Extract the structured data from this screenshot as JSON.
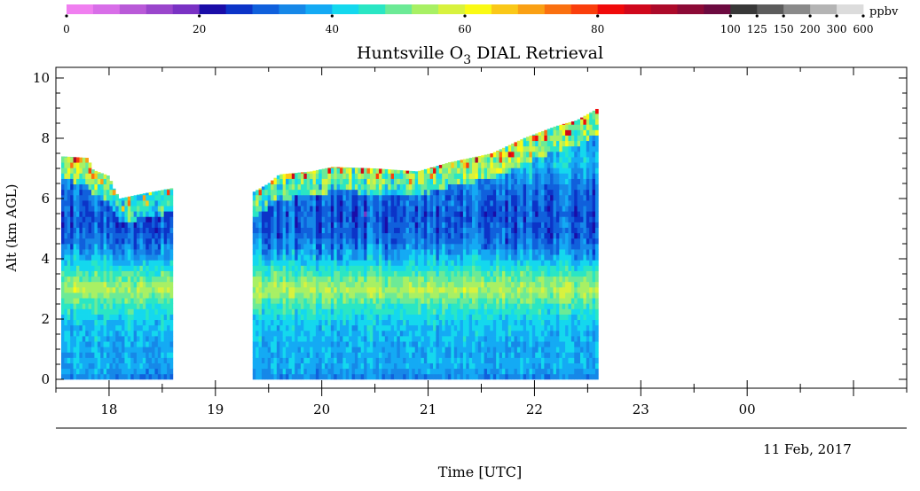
{
  "chart_data": {
    "type": "heatmap",
    "title": "Huntsville O",
    "title_subscript": "3",
    "title_suffix": " DIAL Retrieval",
    "xlabel": "Time [UTC]",
    "ylabel": "Alt (km AGL)",
    "date_label": "11 Feb, 2017",
    "ylim": [
      0,
      10
    ],
    "y_ticks": [
      "0",
      "2",
      "4",
      "6",
      "8",
      "10"
    ],
    "x_hours": [
      17.5,
      25.5
    ],
    "x_ticks": [
      {
        "hour": 18,
        "label": "18"
      },
      {
        "hour": 19,
        "label": "19"
      },
      {
        "hour": 20,
        "label": "20"
      },
      {
        "hour": 21,
        "label": "21"
      },
      {
        "hour": 22,
        "label": "22"
      },
      {
        "hour": 23,
        "label": "23"
      },
      {
        "hour": 24,
        "label": "00"
      }
    ],
    "colorbar": {
      "unit": "ppbv",
      "colors": [
        "#f07ff0",
        "#d86ee8",
        "#b95ad8",
        "#9a46cc",
        "#7a32c4",
        "#1a0da8",
        "#0c34c8",
        "#1060dc",
        "#1688e8",
        "#14aaf4",
        "#14d8ee",
        "#2ae6c4",
        "#6cea96",
        "#a8f064",
        "#d8f23e",
        "#fafa14",
        "#fac818",
        "#faa014",
        "#fa7010",
        "#fa3e0c",
        "#f00a0a",
        "#d0081c",
        "#ac0a2a",
        "#8c0a36",
        "#6c0a40",
        "#383838",
        "#5c5c5c",
        "#8a8a8a",
        "#b4b4b4",
        "#dcdcdc"
      ],
      "labels": [
        {
          "value": "0",
          "index": 0
        },
        {
          "value": "20",
          "index": 5
        },
        {
          "value": "40",
          "index": 10
        },
        {
          "value": "60",
          "index": 15
        },
        {
          "value": "80",
          "index": 20
        },
        {
          "value": "100",
          "index": 25
        },
        {
          "value": "125",
          "index": 26
        },
        {
          "value": "150",
          "index": 27
        },
        {
          "value": "200",
          "index": 28
        },
        {
          "value": "300",
          "index": 29
        },
        {
          "value": "600",
          "index": 30
        }
      ]
    },
    "segments": [
      {
        "start": 17.55,
        "end": 18.6,
        "top_km": [
          [
            17.55,
            7.4
          ],
          [
            17.8,
            7.35
          ],
          [
            17.85,
            6.95
          ],
          [
            18.0,
            6.75
          ],
          [
            18.05,
            6.3
          ],
          [
            18.1,
            6.0
          ],
          [
            18.3,
            6.15
          ],
          [
            18.6,
            6.35
          ]
        ]
      },
      {
        "start": 19.35,
        "end": 22.6,
        "top_km": [
          [
            19.35,
            6.2
          ],
          [
            19.5,
            6.5
          ],
          [
            19.6,
            6.8
          ],
          [
            19.9,
            6.9
          ],
          [
            20.1,
            7.05
          ],
          [
            20.5,
            7.0
          ],
          [
            20.9,
            6.9
          ],
          [
            21.2,
            7.2
          ],
          [
            21.6,
            7.5
          ],
          [
            21.9,
            8.0
          ],
          [
            22.2,
            8.4
          ],
          [
            22.4,
            8.6
          ],
          [
            22.6,
            9.0
          ]
        ]
      }
    ],
    "ozone_profile_ppbv": [
      {
        "alt_km": 0.0,
        "ppbv": 34
      },
      {
        "alt_km": 0.3,
        "ppbv": 38
      },
      {
        "alt_km": 1.0,
        "ppbv": 38
      },
      {
        "alt_km": 1.8,
        "ppbv": 41
      },
      {
        "alt_km": 2.4,
        "ppbv": 47
      },
      {
        "alt_km": 2.9,
        "ppbv": 55
      },
      {
        "alt_km": 3.4,
        "ppbv": 48
      },
      {
        "alt_km": 4.0,
        "ppbv": 38
      },
      {
        "alt_km": 4.6,
        "ppbv": 31
      },
      {
        "alt_km": 5.4,
        "ppbv": 29
      },
      {
        "alt_km": 6.2,
        "ppbv": 32
      },
      {
        "alt_km": 7.0,
        "ppbv": 40
      },
      {
        "alt_km": 8.0,
        "ppbv": 38
      },
      {
        "alt_km": 9.0,
        "ppbv": 40
      }
    ],
    "grid": false
  }
}
